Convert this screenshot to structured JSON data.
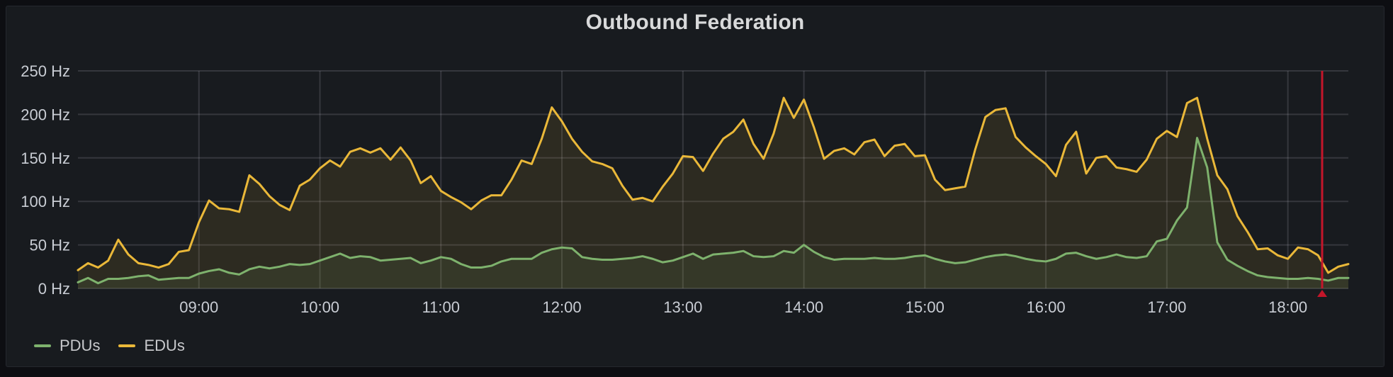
{
  "panel": {
    "title": "Outbound Federation"
  },
  "chart_data": {
    "type": "line",
    "title": "Outbound Federation",
    "unit": "Hz",
    "x_start": "08:00",
    "x_end": "18:30",
    "interval_minutes": 5,
    "ylim": [
      0,
      250
    ],
    "grid": true,
    "legend_position": "bottom-left",
    "y_ticks": [
      {
        "value": 0,
        "label": "0 Hz"
      },
      {
        "value": 50,
        "label": "50 Hz"
      },
      {
        "value": 100,
        "label": "100 Hz"
      },
      {
        "value": 150,
        "label": "150 Hz"
      },
      {
        "value": 200,
        "label": "200 Hz"
      },
      {
        "value": 250,
        "label": "250 Hz"
      }
    ],
    "x_ticks": [
      "09:00",
      "10:00",
      "11:00",
      "12:00",
      "13:00",
      "14:00",
      "15:00",
      "16:00",
      "17:00",
      "18:00"
    ],
    "series": [
      {
        "name": "PDUs",
        "color": "#7EB26D",
        "fill_opacity": 0.1,
        "values": [
          7,
          12,
          6,
          11,
          11,
          12,
          14,
          15,
          10,
          11,
          12,
          12,
          17,
          20,
          22,
          18,
          16,
          22,
          25,
          23,
          25,
          28,
          27,
          28,
          32,
          36,
          40,
          35,
          37,
          36,
          32,
          33,
          34,
          35,
          29,
          32,
          36,
          34,
          28,
          24,
          24,
          26,
          31,
          34,
          34,
          34,
          41,
          45,
          47,
          46,
          36,
          34,
          33,
          33,
          34,
          35,
          37,
          34,
          30,
          32,
          36,
          40,
          34,
          39,
          40,
          41,
          43,
          37,
          36,
          37,
          43,
          41,
          50,
          42,
          36,
          33,
          34,
          34,
          34,
          35,
          34,
          34,
          35,
          37,
          38,
          34,
          31,
          29,
          30,
          33,
          36,
          38,
          39,
          37,
          34,
          32,
          31,
          34,
          40,
          41,
          37,
          34,
          36,
          39,
          36,
          35,
          37,
          54,
          57,
          78,
          93,
          173,
          139,
          53,
          33,
          26,
          20,
          15,
          13,
          12,
          11,
          11,
          12,
          11,
          9,
          12,
          12
        ]
      },
      {
        "name": "EDUs",
        "color": "#EAB839",
        "fill_opacity": 0.1,
        "values": [
          21,
          29,
          24,
          32,
          56,
          39,
          29,
          27,
          24,
          28,
          42,
          44,
          76,
          101,
          92,
          91,
          88,
          130,
          120,
          106,
          96,
          90,
          118,
          125,
          138,
          147,
          140,
          157,
          161,
          156,
          161,
          148,
          162,
          147,
          121,
          129,
          112,
          105,
          99,
          91,
          101,
          107,
          107,
          125,
          147,
          143,
          172,
          208,
          192,
          172,
          157,
          146,
          143,
          138,
          118,
          102,
          104,
          100,
          117,
          132,
          152,
          151,
          135,
          155,
          172,
          180,
          194,
          166,
          149,
          178,
          219,
          196,
          217,
          185,
          149,
          158,
          161,
          154,
          168,
          171,
          152,
          164,
          166,
          152,
          153,
          125,
          113,
          115,
          117,
          160,
          197,
          205,
          207,
          174,
          162,
          152,
          143,
          129,
          165,
          180,
          132,
          150,
          152,
          139,
          137,
          134,
          148,
          172,
          181,
          174,
          213,
          219,
          172,
          130,
          114,
          83,
          65,
          45,
          46,
          38,
          34,
          47,
          45,
          38,
          18,
          25,
          28
        ]
      }
    ],
    "annotation": {
      "time": "18:17",
      "color": "#C4162A"
    }
  }
}
